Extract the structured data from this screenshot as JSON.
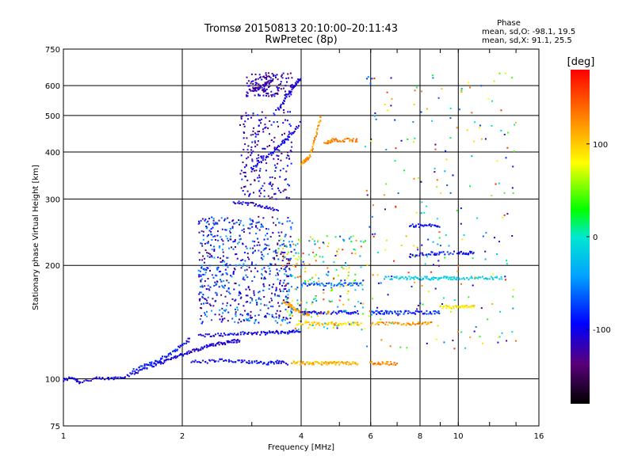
{
  "chart_data": {
    "type": "scatter",
    "title": "Tromsø 20150813 20:10:00–20:11:43",
    "subtitle": "RwPretec (8p)",
    "xlabel": "Frequency [MHz]",
    "ylabel": "Stationary phase Virtual Height [km]",
    "x_scale": "log",
    "y_scale": "log",
    "xlim": [
      1,
      16
    ],
    "ylim": [
      75,
      750
    ],
    "x_ticks": [
      1,
      2,
      4,
      6,
      8,
      10,
      16
    ],
    "x_tick_labels": [
      "1",
      "2",
      "4",
      "6",
      "8",
      "10",
      "16"
    ],
    "y_ticks": [
      75,
      100,
      200,
      300,
      400,
      500,
      600,
      750
    ],
    "y_tick_labels": [
      "75",
      "100",
      "200",
      "300",
      "400",
      "500",
      "600",
      "750"
    ],
    "grid": true,
    "stats": {
      "heading": "Phase",
      "line_o": "mean, sd,O: -98.1, 19.5",
      "line_x": "mean, sd,X:  91.1, 25.5"
    },
    "colorbar": {
      "label": "[deg]",
      "range": [
        -180,
        180
      ],
      "tick_values": [
        100,
        0,
        -100
      ],
      "tick_labels": [
        "100",
        "0",
        "-100"
      ]
    },
    "traces": [
      {
        "f": [
          1.0,
          1.05,
          1.1,
          1.2,
          1.3,
          1.4,
          1.5,
          1.6,
          1.7,
          1.8,
          1.9,
          2.0,
          2.1,
          2.2,
          2.3,
          2.4,
          2.5,
          2.6,
          2.7,
          2.8
        ],
        "h": [
          99,
          101,
          98,
          100,
          100,
          101,
          103,
          107,
          109,
          111,
          114,
          116,
          118,
          120,
          122,
          123,
          124,
          125,
          126,
          126
        ],
        "phase": -110
      },
      {
        "f": [
          1.5,
          1.6,
          1.7,
          1.8,
          1.9,
          2.0,
          2.1
        ],
        "h": [
          105,
          108,
          111,
          114,
          118,
          123,
          128
        ],
        "phase": -95
      },
      {
        "f": [
          2.2,
          2.4,
          2.6,
          2.8,
          3.0,
          3.2,
          3.4,
          3.6,
          3.8,
          4.0
        ],
        "h": [
          130,
          131,
          131,
          132,
          132,
          132,
          133,
          133,
          133,
          134
        ],
        "phase": -105
      },
      {
        "f": [
          2.1,
          2.3,
          2.5,
          2.7,
          2.9,
          3.1,
          3.3,
          3.5,
          3.7
        ],
        "h": [
          111,
          111,
          112,
          111,
          111,
          111,
          110,
          111,
          110
        ],
        "phase": -100
      },
      {
        "f": [
          3.8,
          4.0,
          4.2,
          4.4,
          4.6,
          4.8,
          5.0,
          5.3,
          5.6
        ],
        "h": [
          111,
          110,
          110,
          110,
          110,
          110,
          110,
          110,
          110
        ],
        "phase": 110
      },
      {
        "f": [
          6.0,
          6.3,
          6.6,
          7.0
        ],
        "h": [
          110,
          110,
          110,
          110
        ],
        "phase": 130
      },
      {
        "f": [
          3.6,
          3.7,
          3.8,
          3.9,
          4.0,
          4.1,
          4.2
        ],
        "h": [
          160,
          158,
          155,
          152,
          150,
          149,
          148
        ],
        "phase": 120
      },
      {
        "f": [
          3.9,
          4.2,
          4.5,
          4.8,
          5.1,
          5.4,
          5.7
        ],
        "h": [
          140,
          140,
          140,
          140,
          140,
          140,
          140
        ],
        "phase": 100
      },
      {
        "f": [
          4.0,
          4.3,
          4.6,
          5.0,
          5.3,
          5.6
        ],
        "h": [
          150,
          150,
          150,
          150,
          150,
          150
        ],
        "phase": -100
      },
      {
        "f": [
          6.0,
          6.3,
          6.6,
          7.0,
          7.5,
          8.0,
          8.5,
          9.0
        ],
        "h": [
          150,
          150,
          150,
          150,
          150,
          150,
          150,
          150
        ],
        "phase": -90
      },
      {
        "f": [
          6.0,
          6.5,
          7.0,
          7.5,
          8.0,
          8.5
        ],
        "h": [
          140,
          140,
          140,
          140,
          140,
          140
        ],
        "phase": 120
      },
      {
        "f": [
          9.0,
          9.5,
          10.0,
          10.5,
          11.0
        ],
        "h": [
          155,
          155,
          155,
          155,
          155
        ],
        "phase": 90
      },
      {
        "f": [
          4.0,
          4.3,
          4.6,
          5.0,
          5.4,
          5.7
        ],
        "h": [
          178,
          178,
          178,
          178,
          178,
          178
        ],
        "phase": -70
      },
      {
        "f": [
          6.5,
          7.0,
          7.5,
          8.0,
          8.5,
          9.0,
          9.5,
          10.0,
          11.0,
          12.0,
          13.0
        ],
        "h": [
          185,
          185,
          185,
          185,
          185,
          185,
          185,
          185,
          185,
          185,
          185
        ],
        "phase": -20
      },
      {
        "f": [
          7.5,
          8.0,
          8.5,
          9.0,
          10.0,
          10.5,
          11.0
        ],
        "h": [
          212,
          214,
          215,
          215,
          216,
          216,
          216
        ],
        "phase": -100
      },
      {
        "f": [
          3.0,
          3.2,
          3.4,
          3.6,
          3.8,
          4.0
        ],
        "h": [
          360,
          380,
          400,
          425,
          450,
          480
        ],
        "phase": -110
      },
      {
        "f": [
          3.5,
          3.6,
          3.7,
          3.8,
          3.9,
          4.0
        ],
        "h": [
          520,
          540,
          570,
          590,
          610,
          630
        ],
        "phase": -110
      },
      {
        "f": [
          3.0,
          3.1,
          3.2,
          3.3,
          3.4
        ],
        "h": [
          580,
          590,
          600,
          610,
          620
        ],
        "phase": -130
      },
      {
        "f": [
          4.0,
          4.1,
          4.2,
          4.3,
          4.4,
          4.5
        ],
        "h": [
          370,
          380,
          390,
          420,
          460,
          500
        ],
        "phase": 120
      },
      {
        "f": [
          4.6,
          4.7,
          4.8,
          5.0,
          5.3,
          5.6
        ],
        "h": [
          420,
          425,
          430,
          430,
          430,
          430
        ],
        "phase": 130
      },
      {
        "f": [
          7.5,
          8.0,
          8.5,
          9.0
        ],
        "h": [
          255,
          255,
          255,
          255
        ],
        "phase": -100
      },
      {
        "f": [
          2.7,
          2.9,
          3.1,
          3.3,
          3.5
        ],
        "h": [
          295,
          292,
          290,
          285,
          280
        ],
        "phase": -110
      }
    ],
    "clouds": [
      {
        "f": [
          2.2,
          3.8
        ],
        "h": [
          140,
          270
        ],
        "n": 650,
        "phase_range": [
          -150,
          -40
        ]
      },
      {
        "f": [
          2.8,
          3.8
        ],
        "h": [
          300,
          520
        ],
        "n": 220,
        "phase_range": [
          -150,
          -80
        ]
      },
      {
        "f": [
          2.9,
          3.8
        ],
        "h": [
          560,
          650
        ],
        "n": 120,
        "phase_range": [
          -150,
          -90
        ]
      },
      {
        "f": [
          3.5,
          5.8
        ],
        "h": [
          135,
          240
        ],
        "n": 220,
        "phase_range": [
          -120,
          160
        ]
      },
      {
        "f": [
          5.8,
          14.0
        ],
        "h": [
          120,
          650
        ],
        "n": 240,
        "phase_range": [
          -150,
          170
        ]
      }
    ]
  }
}
